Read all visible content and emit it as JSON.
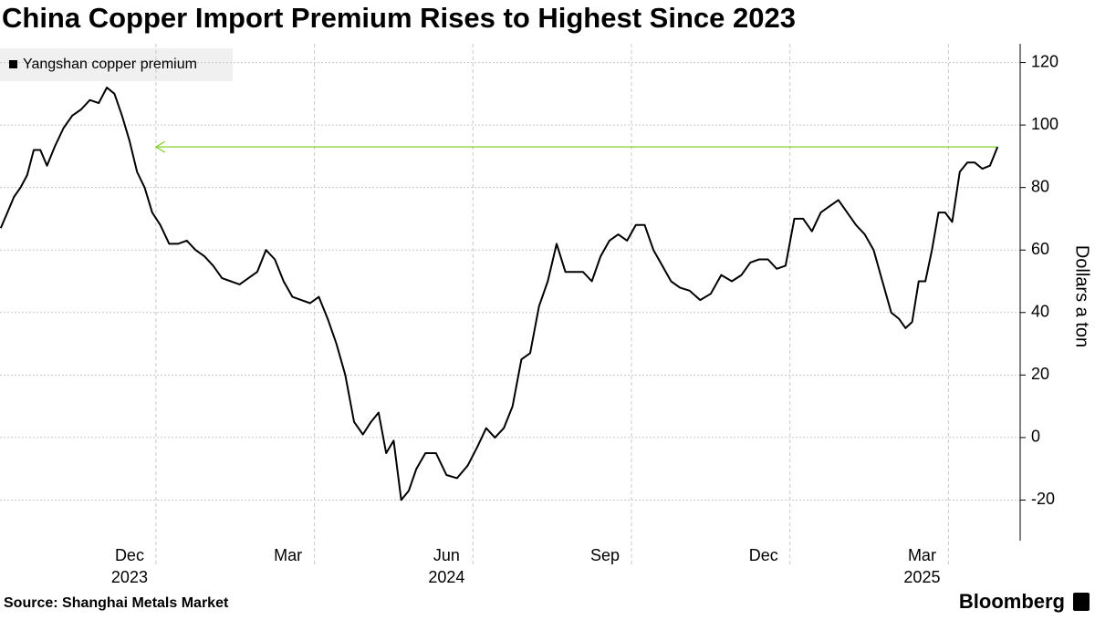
{
  "chart_data": {
    "type": "line",
    "title": "China Copper Import Premium Rises to Highest Since 2023",
    "y_label": "Dollars a ton",
    "source": "Source: Shanghai Metals Market",
    "brand": "Bloomberg",
    "x": [
      "2023-10",
      "2023-10",
      "2023-10",
      "2023-10",
      "2023-10",
      "2023-10",
      "2023-10",
      "2023-10",
      "2023-11",
      "2023-11",
      "2023-11",
      "2023-11",
      "2023-11",
      "2023-11",
      "2023-12",
      "2023-12",
      "2023-12",
      "2023-12",
      "2023-12",
      "2023-12",
      "2023-12",
      "2024-01",
      "2024-01",
      "2024-01",
      "2024-01",
      "2024-01",
      "2024-01",
      "2024-02",
      "2024-02",
      "2024-02",
      "2024-02",
      "2024-02",
      "2024-02",
      "2024-03",
      "2024-03",
      "2024-03",
      "2024-03",
      "2024-03",
      "2024-03",
      "2024-04",
      "2024-04",
      "2024-04",
      "2024-04",
      "2024-04",
      "2024-04",
      "2024-05",
      "2024-05",
      "2024-05",
      "2024-05",
      "2024-05",
      "2024-05",
      "2024-05",
      "2024-06",
      "2024-06",
      "2024-06",
      "2024-06",
      "2024-06",
      "2024-07",
      "2024-07",
      "2024-07",
      "2024-07",
      "2024-07",
      "2024-07",
      "2024-08",
      "2024-08",
      "2024-08",
      "2024-08",
      "2024-08",
      "2024-08",
      "2024-09",
      "2024-09",
      "2024-09",
      "2024-09",
      "2024-09",
      "2024-09",
      "2024-10",
      "2024-10",
      "2024-10",
      "2024-10",
      "2024-10",
      "2024-10",
      "2024-11",
      "2024-11",
      "2024-11",
      "2024-11",
      "2024-11",
      "2024-12",
      "2024-12",
      "2024-12",
      "2024-12",
      "2024-12",
      "2024-12",
      "2025-01",
      "2025-01",
      "2025-01",
      "2025-01",
      "2025-01",
      "2025-01",
      "2025-02",
      "2025-02",
      "2025-02",
      "2025-02",
      "2025-02",
      "2025-02",
      "2025-03",
      "2025-03",
      "2025-03",
      "2025-03",
      "2025-03",
      "2025-03",
      "2025-03",
      "2025-03",
      "2025-04",
      "2025-04",
      "2025-04",
      "2025-04",
      "2025-04",
      "2025-04",
      "2025-04"
    ],
    "series": [
      {
        "name": "Yangshan copper premium",
        "color": "#000000",
        "values": [
          67,
          72,
          77,
          80,
          84,
          92,
          92,
          87,
          93,
          99,
          103,
          105,
          108,
          107,
          112,
          110,
          103,
          95,
          85,
          80,
          72,
          68,
          62,
          62,
          63,
          60,
          58,
          55,
          51,
          50,
          49,
          51,
          53,
          60,
          57,
          50,
          45,
          44,
          43,
          45,
          38,
          30,
          20,
          5,
          1,
          5,
          8,
          -5,
          -1,
          -20,
          -17,
          -10,
          -5,
          -5,
          -12,
          -13,
          -9,
          -3,
          3,
          0,
          3,
          10,
          25,
          27,
          42,
          50,
          62,
          53,
          53,
          53,
          50,
          58,
          63,
          65,
          63,
          68,
          68,
          60,
          55,
          50,
          48,
          47,
          44,
          46,
          52,
          50,
          52,
          56,
          57,
          57,
          54,
          55,
          70,
          70,
          66,
          72,
          74,
          76,
          72,
          68,
          65,
          60,
          50,
          40,
          38,
          35,
          37,
          50,
          50,
          60,
          72,
          72,
          69,
          85,
          88,
          88,
          86,
          87,
          93
        ]
      }
    ],
    "xlim": [
      "2023-10",
      "2025-04"
    ],
    "xticks": [
      {
        "value": "2023-12",
        "label": "Dec"
      },
      {
        "value": "2024-03",
        "label": "Mar"
      },
      {
        "value": "2024-06",
        "label": "Jun"
      },
      {
        "value": "2024-09",
        "label": "Sep"
      },
      {
        "value": "2024-12",
        "label": "Dec"
      },
      {
        "value": "2025-03",
        "label": "Mar"
      }
    ],
    "xticks_years": [
      {
        "value": "2023-12",
        "label": "2023"
      },
      {
        "value": "2024-06",
        "label": "2024"
      },
      {
        "value": "2025-03",
        "label": "2025"
      }
    ],
    "ylim": [
      -33,
      126
    ],
    "yticks": [
      -20,
      0,
      20,
      40,
      60,
      80,
      100,
      120
    ],
    "grid": true,
    "reference": {
      "value": 93,
      "from": "2023-12",
      "color": "#7ed321"
    }
  }
}
